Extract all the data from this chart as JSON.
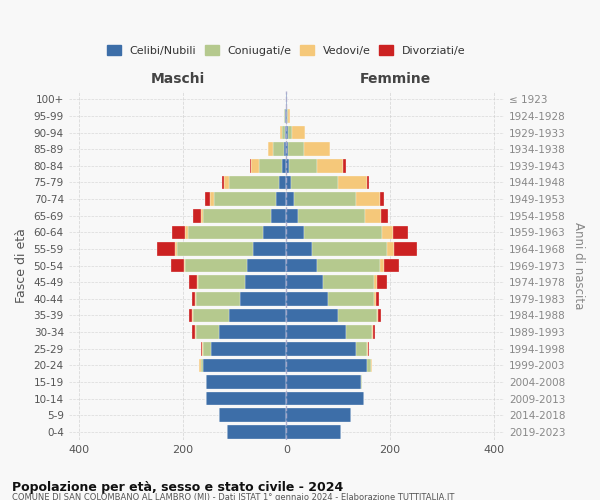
{
  "age_groups": [
    "0-4",
    "5-9",
    "10-14",
    "15-19",
    "20-24",
    "25-29",
    "30-34",
    "35-39",
    "40-44",
    "45-49",
    "50-54",
    "55-59",
    "60-64",
    "65-69",
    "70-74",
    "75-79",
    "80-84",
    "85-89",
    "90-94",
    "95-99",
    "100+"
  ],
  "birth_years": [
    "2019-2023",
    "2014-2018",
    "2009-2013",
    "2004-2008",
    "1999-2003",
    "1994-1998",
    "1989-1993",
    "1984-1988",
    "1979-1983",
    "1974-1978",
    "1969-1973",
    "1964-1968",
    "1959-1963",
    "1954-1958",
    "1949-1953",
    "1944-1948",
    "1939-1943",
    "1934-1938",
    "1929-1933",
    "1924-1928",
    "≤ 1923"
  ],
  "male": {
    "celibi": [
      115,
      130,
      155,
      155,
      160,
      145,
      130,
      110,
      90,
      80,
      75,
      65,
      45,
      30,
      20,
      15,
      8,
      5,
      3,
      2,
      1
    ],
    "coniugati": [
      0,
      0,
      0,
      0,
      5,
      15,
      45,
      70,
      85,
      90,
      120,
      145,
      145,
      130,
      120,
      95,
      45,
      20,
      5,
      2,
      0
    ],
    "vedovi": [
      0,
      0,
      0,
      0,
      3,
      2,
      2,
      2,
      2,
      2,
      3,
      5,
      5,
      5,
      8,
      10,
      15,
      10,
      4,
      1,
      0
    ],
    "divorziati": [
      0,
      0,
      0,
      0,
      0,
      2,
      5,
      5,
      5,
      15,
      25,
      35,
      25,
      15,
      8,
      5,
      2,
      0,
      0,
      0,
      0
    ]
  },
  "female": {
    "nubili": [
      105,
      125,
      150,
      145,
      155,
      135,
      115,
      100,
      80,
      70,
      60,
      50,
      35,
      22,
      15,
      10,
      5,
      4,
      3,
      2,
      1
    ],
    "coniugate": [
      0,
      0,
      0,
      2,
      8,
      20,
      50,
      75,
      90,
      100,
      120,
      145,
      150,
      130,
      120,
      90,
      55,
      30,
      8,
      2,
      0
    ],
    "vedove": [
      0,
      0,
      0,
      0,
      2,
      2,
      2,
      2,
      3,
      5,
      8,
      12,
      20,
      30,
      45,
      55,
      50,
      50,
      25,
      3,
      0
    ],
    "divorziate": [
      0,
      0,
      0,
      0,
      0,
      2,
      5,
      5,
      5,
      20,
      30,
      45,
      30,
      15,
      8,
      5,
      5,
      0,
      0,
      0,
      0
    ]
  },
  "colors": {
    "celibi": "#3d6ea8",
    "coniugati": "#b5c98e",
    "vedovi": "#f5c87a",
    "divorziati": "#cc2222"
  },
  "xlim": 420,
  "title": "Popolazione per età, sesso e stato civile - 2024",
  "subtitle": "COMUNE DI SAN COLOMBANO AL LAMBRO (MI) - Dati ISTAT 1° gennaio 2024 - Elaborazione TUTTITALIA.IT",
  "xlabel_left": "Maschi",
  "xlabel_right": "Femmine",
  "ylabel_left": "Fasce di età",
  "ylabel_right": "Anni di nascita",
  "bg_color": "#f8f8f8",
  "grid_color": "#cccccc"
}
